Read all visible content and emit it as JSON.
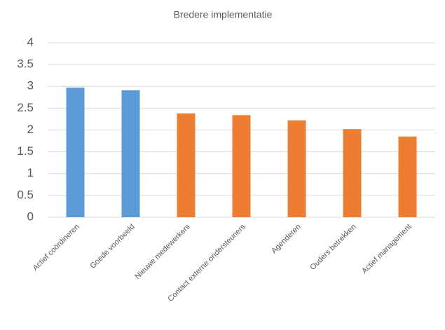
{
  "chart_data": {
    "type": "bar",
    "title": "Bredere implementatie",
    "categories": [
      "Actief coördineren",
      "Goede voorbeeld",
      "Nieuwe medewerkers",
      "Contact externe ondersteuners",
      "Agenderen",
      "Ouders betrekken",
      "Actief management"
    ],
    "values": [
      2.97,
      2.91,
      2.38,
      2.34,
      2.22,
      2.02,
      1.85
    ],
    "colors": [
      "#5b9bd5",
      "#5b9bd5",
      "#ed7d31",
      "#ed7d31",
      "#ed7d31",
      "#ed7d31",
      "#ed7d31"
    ],
    "ylim": [
      0,
      4
    ],
    "yticks": [
      0,
      0.5,
      1,
      1.5,
      2,
      2.5,
      3,
      3.5,
      4
    ],
    "grid": true
  }
}
